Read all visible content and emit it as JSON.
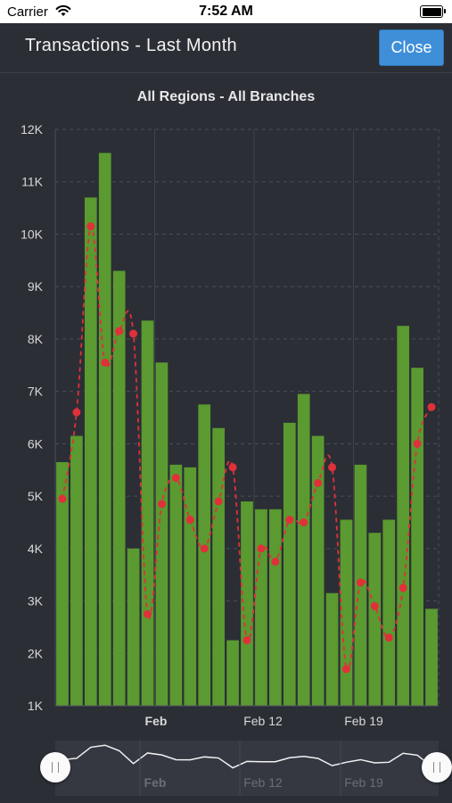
{
  "status_bar": {
    "carrier": "Carrier",
    "time": "7:52 AM"
  },
  "header": {
    "title": "Transactions - Last Month",
    "close_label": "Close"
  },
  "chart_data": {
    "type": "bar",
    "title": "All Regions - All Branches",
    "y_ticks": [
      "1K",
      "2K",
      "3K",
      "4K",
      "5K",
      "6K",
      "7K",
      "8K",
      "9K",
      "10K",
      "11K",
      "12K"
    ],
    "ylim": [
      1000,
      12000
    ],
    "x_ticks": [
      "Feb",
      "Feb 12",
      "Feb 19"
    ],
    "grid": true,
    "bar_color": "#5a9a30",
    "line_color": "#e0303a",
    "series": [
      {
        "type": "bar",
        "values": [
          5650,
          6150,
          10700,
          11550,
          9300,
          4000,
          8350,
          7550,
          5600,
          5550,
          6750,
          6300,
          2250,
          4900,
          4750,
          4750,
          6400,
          6950,
          6150,
          3150,
          4550,
          5600,
          4300,
          4550,
          8250,
          7450,
          2850
        ]
      },
      {
        "type": "line",
        "values": [
          4950,
          6600,
          10150,
          7550,
          8150,
          8100,
          2750,
          4850,
          5350,
          4550,
          4000,
          4900,
          5550,
          2250,
          4000,
          3750,
          4550,
          4500,
          5250,
          5550,
          1700,
          3350,
          2900,
          2300,
          3250,
          6000,
          6700
        ]
      }
    ]
  },
  "navigator": {
    "x_ticks": [
      "Feb",
      "Feb 12",
      "Feb 19"
    ]
  }
}
